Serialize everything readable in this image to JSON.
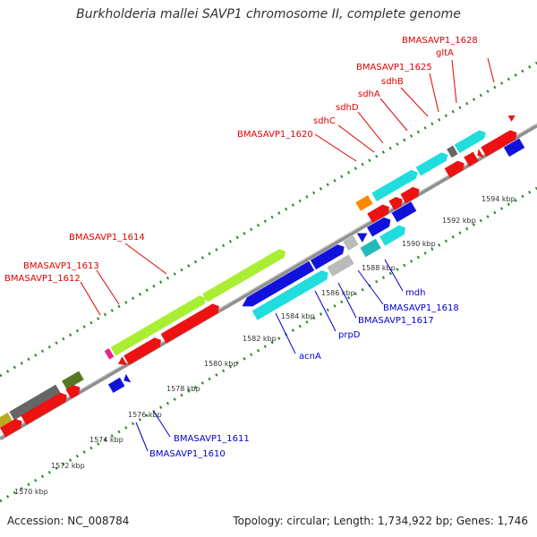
{
  "title": "Burkholderia mallei SAVP1 chromosome II, complete genome",
  "accession": "Accession: NC_008784",
  "summary": "Topology: circular; Length: 1,734,922 bp; Genes: 1,746",
  "colors": {
    "backbone": "#999999",
    "tick": "#2a8a2a",
    "label_red": "#e00000",
    "label_blue": "#0000cc",
    "gene_red": "#ee1111",
    "gene_cyan": "#22dddd",
    "gene_blue": "#1111dd",
    "gene_lime": "#aaee33",
    "gene_gray": "#666666",
    "gene_olive": "#557722",
    "gene_orange": "#ff8800",
    "gene_teal": "#22bbbb",
    "gene_lightgray": "#bbbbbb",
    "gene_magenta": "#ee2288"
  },
  "kbp_labels": [
    "1570 kbp",
    "1572 kbp",
    "1574 kbp",
    "1576 kbp",
    "1578 kbp",
    "1580 kbp",
    "1582 kbp",
    "1584 kbp",
    "1586 kbp",
    "1588 kbp",
    "1590 kbp",
    "1592 kbp",
    "1594 kbp"
  ],
  "gene_labels_top": [
    "BMASAVP1_1628",
    "gltA",
    "BMASAVP1_1625",
    "sdhB",
    "sdhA",
    "sdhD",
    "sdhC",
    "BMASAVP1_1620",
    "BMASAVP1_1614",
    "BMASAVP1_1613",
    "BMASAVP1_1612"
  ],
  "gene_labels_bottom": [
    "mdh",
    "BMASAVP1_1618",
    "BMASAVP1_1617",
    "prpD",
    "acnA",
    "BMASAVP1_1611",
    "BMASAVP1_1610"
  ]
}
